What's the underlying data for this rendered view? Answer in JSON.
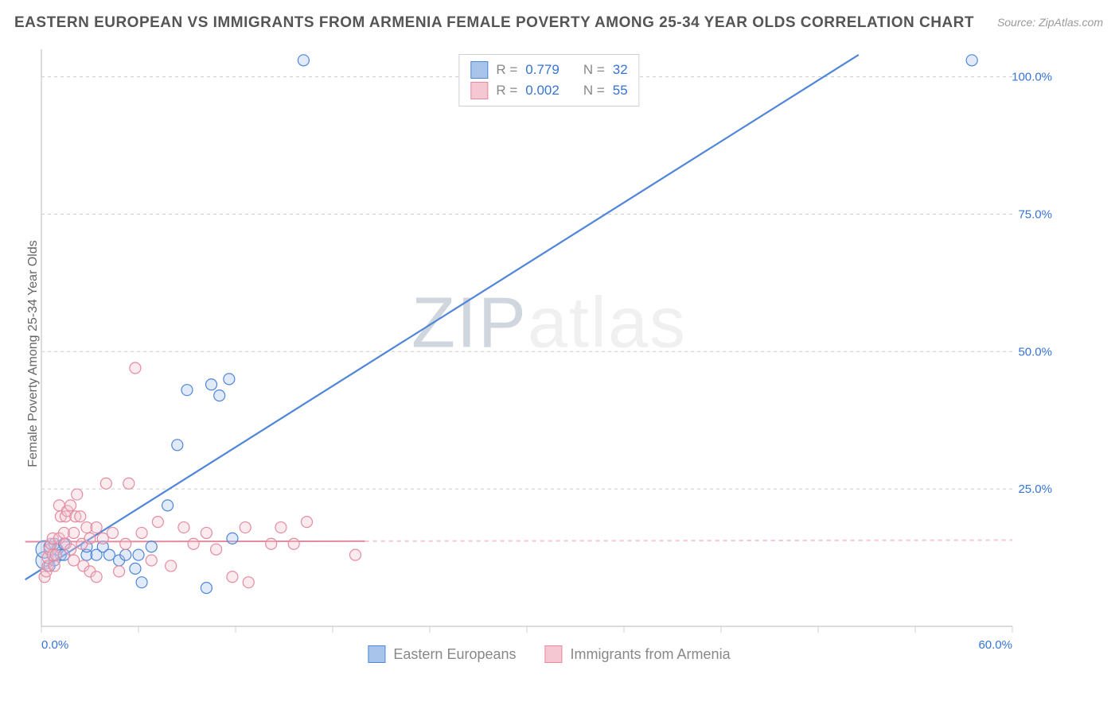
{
  "title": "EASTERN EUROPEAN VS IMMIGRANTS FROM ARMENIA FEMALE POVERTY AMONG 25-34 YEAR OLDS CORRELATION CHART",
  "source": "Source: ZipAtlas.com",
  "y_axis_label": "Female Poverty Among 25-34 Year Olds",
  "watermark": {
    "part1": "ZIP",
    "part2": "atlas"
  },
  "chart": {
    "type": "scatter",
    "xlim": [
      0,
      60
    ],
    "ylim": [
      0,
      105
    ],
    "x_ticks": [
      0,
      6,
      12,
      18,
      24,
      30,
      36,
      42,
      48,
      54,
      60
    ],
    "x_tick_labels": {
      "0": "0.0%",
      "60": "60.0%"
    },
    "y_ticks": [
      25,
      50,
      75,
      100
    ],
    "y_tick_labels": {
      "25": "25.0%",
      "50": "50.0%",
      "75": "75.0%",
      "100": "100.0%"
    },
    "background_color": "#ffffff",
    "grid_color": "#cccccc",
    "grid_dash": "4 4",
    "axis_color": "#d0d0d0",
    "tick_label_color": "#3673d6",
    "tick_label_fontsize": 15,
    "marker_radius": 7,
    "marker_radius_big": 11,
    "marker_fill_opacity": 0.35,
    "marker_stroke_width": 1.2,
    "series": [
      {
        "name": "Eastern Europeans",
        "color_stroke": "#4f86d9",
        "color_fill": "#a9c4ea",
        "r_value": "0.779",
        "n_value": "32",
        "trend": {
          "x1": -1,
          "y1": 8.5,
          "x2": 50.5,
          "y2": 104,
          "dash": null,
          "extend_dash_to_x": null,
          "stroke_width": 2.2
        },
        "points": [
          {
            "x": 0.2,
            "y": 12,
            "big": true
          },
          {
            "x": 0.2,
            "y": 14,
            "big": true
          },
          {
            "x": 0.5,
            "y": 14.5
          },
          {
            "x": 0.8,
            "y": 15
          },
          {
            "x": 1.0,
            "y": 14
          },
          {
            "x": 1.2,
            "y": 13
          },
          {
            "x": 0.5,
            "y": 11
          },
          {
            "x": 0.8,
            "y": 12
          },
          {
            "x": 1.4,
            "y": 15
          },
          {
            "x": 1.4,
            "y": 13
          },
          {
            "x": 2.8,
            "y": 13
          },
          {
            "x": 2.8,
            "y": 14.5
          },
          {
            "x": 3.4,
            "y": 13
          },
          {
            "x": 3.8,
            "y": 14.5
          },
          {
            "x": 4.2,
            "y": 13
          },
          {
            "x": 4.8,
            "y": 12
          },
          {
            "x": 5.2,
            "y": 13
          },
          {
            "x": 5.8,
            "y": 10.5
          },
          {
            "x": 6.0,
            "y": 13
          },
          {
            "x": 6.2,
            "y": 8
          },
          {
            "x": 6.8,
            "y": 14.5
          },
          {
            "x": 7.8,
            "y": 22
          },
          {
            "x": 8.4,
            "y": 33
          },
          {
            "x": 9.0,
            "y": 43
          },
          {
            "x": 10.2,
            "y": 7
          },
          {
            "x": 10.5,
            "y": 44
          },
          {
            "x": 11.0,
            "y": 42
          },
          {
            "x": 11.6,
            "y": 45
          },
          {
            "x": 11.8,
            "y": 16
          },
          {
            "x": 16.2,
            "y": 103
          },
          {
            "x": 57.5,
            "y": 103
          }
        ]
      },
      {
        "name": "Immigrants from Armenia",
        "color_stroke": "#e48ba0",
        "color_fill": "#f4c7d2",
        "r_value": "0.002",
        "n_value": "55",
        "trend": {
          "x1": -1,
          "y1": 15.4,
          "x2": 20,
          "y2": 15.5,
          "dash": "5 5",
          "extend_dash_to_x": 60,
          "stroke_width": 2
        },
        "points": [
          {
            "x": 0.2,
            "y": 9
          },
          {
            "x": 0.3,
            "y": 10
          },
          {
            "x": 0.4,
            "y": 11
          },
          {
            "x": 0.4,
            "y": 12.5
          },
          {
            "x": 0.5,
            "y": 14
          },
          {
            "x": 0.6,
            "y": 15
          },
          {
            "x": 0.7,
            "y": 16
          },
          {
            "x": 0.7,
            "y": 13
          },
          {
            "x": 0.8,
            "y": 11
          },
          {
            "x": 0.9,
            "y": 13
          },
          {
            "x": 1.1,
            "y": 16
          },
          {
            "x": 1.1,
            "y": 22
          },
          {
            "x": 1.2,
            "y": 20
          },
          {
            "x": 1.4,
            "y": 17
          },
          {
            "x": 1.5,
            "y": 20
          },
          {
            "x": 1.5,
            "y": 15
          },
          {
            "x": 1.6,
            "y": 21
          },
          {
            "x": 1.8,
            "y": 22
          },
          {
            "x": 1.8,
            "y": 14
          },
          {
            "x": 2.0,
            "y": 17
          },
          {
            "x": 2.0,
            "y": 12
          },
          {
            "x": 2.1,
            "y": 20
          },
          {
            "x": 2.2,
            "y": 24
          },
          {
            "x": 2.4,
            "y": 20
          },
          {
            "x": 2.5,
            "y": 15
          },
          {
            "x": 2.6,
            "y": 11
          },
          {
            "x": 2.8,
            "y": 18
          },
          {
            "x": 3.0,
            "y": 10
          },
          {
            "x": 3.0,
            "y": 16
          },
          {
            "x": 3.4,
            "y": 18
          },
          {
            "x": 3.4,
            "y": 9
          },
          {
            "x": 3.8,
            "y": 16
          },
          {
            "x": 4.0,
            "y": 26
          },
          {
            "x": 4.4,
            "y": 17
          },
          {
            "x": 4.8,
            "y": 10
          },
          {
            "x": 5.2,
            "y": 15
          },
          {
            "x": 5.4,
            "y": 26
          },
          {
            "x": 5.8,
            "y": 47
          },
          {
            "x": 6.2,
            "y": 17
          },
          {
            "x": 6.8,
            "y": 12
          },
          {
            "x": 7.2,
            "y": 19
          },
          {
            "x": 8.0,
            "y": 11
          },
          {
            "x": 8.8,
            "y": 18
          },
          {
            "x": 9.4,
            "y": 15
          },
          {
            "x": 10.2,
            "y": 17
          },
          {
            "x": 10.8,
            "y": 14
          },
          {
            "x": 11.8,
            "y": 9
          },
          {
            "x": 12.8,
            "y": 8
          },
          {
            "x": 12.6,
            "y": 18
          },
          {
            "x": 14.2,
            "y": 15
          },
          {
            "x": 14.8,
            "y": 18
          },
          {
            "x": 15.6,
            "y": 15
          },
          {
            "x": 16.4,
            "y": 19
          },
          {
            "x": 19.4,
            "y": 13
          }
        ]
      }
    ]
  },
  "legend_top": {
    "r_label": "R  =",
    "n_label": "N  ="
  },
  "legend_bottom": {
    "items": [
      "Eastern Europeans",
      "Immigrants from Armenia"
    ]
  }
}
